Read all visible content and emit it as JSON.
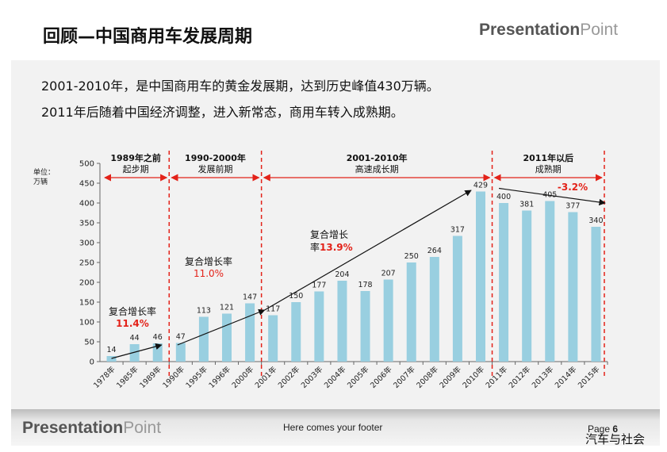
{
  "slide": {
    "title": "回顾—中国商用车发展周期",
    "brand_bold": "Presentation",
    "brand_light": "Point",
    "intro_line1": "2001-2010年，是中国商用车的黄金发展期，达到历史峰值430万辆。",
    "intro_line2": "2011年后随着中国经济调整，进入新常态，商用车转入成熟期。",
    "footer_text": "Here comes your footer",
    "page_label": "Page",
    "page_number": "6",
    "watermark": "汽车与社会"
  },
  "chart_data": {
    "type": "bar",
    "unit_label": [
      "单位：",
      "万辆"
    ],
    "categories": [
      "1978年",
      "1985年",
      "1989年",
      "1990年",
      "1995年",
      "1996年",
      "2000年",
      "2001年",
      "2002年",
      "2003年",
      "2004年",
      "2005年",
      "2006年",
      "2007年",
      "2008年",
      "2009年",
      "2010年",
      "2011年",
      "2012年",
      "2013年",
      "2014年",
      "2015年"
    ],
    "values": [
      14,
      44,
      46,
      47,
      113,
      121,
      147,
      117,
      150,
      177,
      204,
      178,
      207,
      250,
      264,
      317,
      429,
      400,
      381,
      405,
      377,
      340
    ],
    "ylim": [
      0,
      500
    ],
    "yticks": [
      0,
      50,
      100,
      150,
      200,
      250,
      300,
      350,
      400,
      450,
      500
    ],
    "bar_color": "#99cfe0",
    "grid": false,
    "periods": [
      {
        "line1": "1989年之前",
        "line2": "起步期",
        "start_index": 0,
        "end_index": 2
      },
      {
        "line1": "1990-2000年",
        "line2": "发展前期",
        "start_index": 3,
        "end_index": 6
      },
      {
        "line1": "2001-2010年",
        "line2": "高速成长期",
        "start_index": 7,
        "end_index": 16
      },
      {
        "line1": "2011年以后",
        "line2": "成熟期",
        "start_index": 17,
        "end_index": 21
      }
    ],
    "annotations": [
      {
        "label": "复合增长率",
        "rate": "11.4%",
        "rate_color": "#e32219"
      },
      {
        "label": "复合增长率",
        "rate": "11.0%",
        "rate_color": "#e32219"
      },
      {
        "label": "复合增长",
        "label2": "率",
        "rate": "13.9%",
        "rate_color": "#e32219"
      },
      {
        "rate": "-3.2%",
        "rate_color": "#e32219"
      }
    ],
    "divider_color": "#e32219"
  }
}
